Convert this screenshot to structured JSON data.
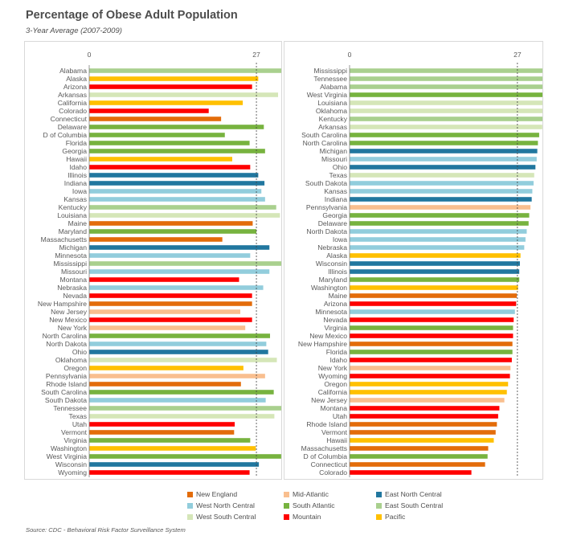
{
  "title": "Percentage of Obese Adult Population",
  "subtitle": "3-Year Average (2007-2009)",
  "source": "Source: CDC - Behavioral Risk Factor Surveillance System",
  "colors": {
    "New England": "#e36c0a",
    "Mid-Atlantic": "#f9bf8f",
    "East North Central": "#21779f",
    "West North Central": "#92cddc",
    "South Atlantic": "#77b33f",
    "East South Central": "#a9d08e",
    "West South Central": "#d5e6b8",
    "Mountain": "#ff0000",
    "Pacific": "#ffc000"
  },
  "legend": [
    {
      "label": "New England",
      "color": "#e36c0a"
    },
    {
      "label": "Mid-Atlantic",
      "color": "#f9bf8f"
    },
    {
      "label": "East North Central",
      "color": "#21779f"
    },
    {
      "label": "West North Central",
      "color": "#92cddc"
    },
    {
      "label": "South Atlantic",
      "color": "#77b33f"
    },
    {
      "label": "East South Central",
      "color": "#a9d08e"
    },
    {
      "label": "West South Central",
      "color": "#d5e6b8"
    },
    {
      "label": "Mountain",
      "color": "#ff0000"
    },
    {
      "label": "Pacific",
      "color": "#ffc000"
    }
  ],
  "chart_data": [
    {
      "type": "bar",
      "orientation": "horizontal",
      "sort": "alphabetical",
      "xlim": [
        0,
        34
      ],
      "xticks": [
        "0",
        "27"
      ],
      "reference_line": 27,
      "categories": [
        "Alabama",
        "Alaska",
        "Arizona",
        "Arkansas",
        "California",
        "Colorado",
        "Connecticut",
        "Delaware",
        "D of Columbia",
        "Florida",
        "Georgia",
        "Hawaii",
        "Idaho",
        "Illinois",
        "Indiana",
        "Iowa",
        "Kansas",
        "Kentucky",
        "Louisiana",
        "Maine",
        "Maryland",
        "Massachusetts",
        "Michigan",
        "Minnesota",
        "Mississippi",
        "Missouri",
        "Montana",
        "Nebraska",
        "Nevada",
        "New Hampshire",
        "New Jersey",
        "New Mexico",
        "New York",
        "North Carolina",
        "North Dakota",
        "Ohio",
        "Oklahoma",
        "Oregon",
        "Pennsylvania",
        "Rhode Island",
        "South Carolina",
        "South Dakota",
        "Tennessee",
        "Texas",
        "Utah",
        "Vermont",
        "Virginia",
        "Washington",
        "West Virginia",
        "Wisconsin",
        "Wyoming"
      ],
      "values": [
        31.6,
        27.3,
        26.3,
        30.5,
        24.8,
        19.3,
        21.3,
        28.2,
        21.9,
        25.9,
        28.4,
        23.1,
        26.0,
        27.3,
        28.3,
        27.8,
        28.4,
        30.2,
        30.8,
        26.4,
        27.0,
        21.5,
        29.1,
        26.0,
        33.8,
        29.1,
        24.2,
        28.1,
        26.3,
        26.3,
        24.4,
        26.3,
        25.2,
        29.2,
        28.6,
        28.9,
        30.3,
        24.9,
        28.4,
        24.5,
        29.8,
        28.5,
        31.4,
        29.9,
        23.5,
        23.4,
        26.0,
        26.9,
        31.0,
        27.4,
        25.9
      ],
      "regions": [
        "East South Central",
        "Pacific",
        "Mountain",
        "West South Central",
        "Pacific",
        "Mountain",
        "New England",
        "South Atlantic",
        "South Atlantic",
        "South Atlantic",
        "South Atlantic",
        "Pacific",
        "Mountain",
        "East North Central",
        "East North Central",
        "West North Central",
        "West North Central",
        "East South Central",
        "West South Central",
        "New England",
        "South Atlantic",
        "New England",
        "East North Central",
        "West North Central",
        "East South Central",
        "West North Central",
        "Mountain",
        "West North Central",
        "Mountain",
        "New England",
        "Mid-Atlantic",
        "Mountain",
        "Mid-Atlantic",
        "South Atlantic",
        "West North Central",
        "East North Central",
        "West South Central",
        "Pacific",
        "Mid-Atlantic",
        "New England",
        "South Atlantic",
        "West North Central",
        "East South Central",
        "West South Central",
        "Mountain",
        "New England",
        "South Atlantic",
        "Pacific",
        "South Atlantic",
        "East North Central",
        "Mountain"
      ]
    },
    {
      "type": "bar",
      "orientation": "horizontal",
      "sort": "descending",
      "xlim": [
        0,
        34
      ],
      "xticks": [
        "0",
        "27"
      ],
      "reference_line": 27,
      "categories": [
        "Mississippi",
        "Tennessee",
        "Alabama",
        "West Virginia",
        "Louisiana",
        "Oklahoma",
        "Kentucky",
        "Arkansas",
        "South Carolina",
        "North Carolina",
        "Michigan",
        "Missouri",
        "Ohio",
        "Texas",
        "South Dakota",
        "Kansas",
        "Indiana",
        "Pennsylvania",
        "Georgia",
        "Delaware",
        "North Dakota",
        "Iowa",
        "Nebraska",
        "Alaska",
        "Wisconsin",
        "Illinois",
        "Maryland",
        "Washington",
        "Maine",
        "Arizona",
        "Minnesota",
        "Nevada",
        "Virginia",
        "New Mexico",
        "New Hampshire",
        "Florida",
        "Idaho",
        "New York",
        "Wyoming",
        "Oregon",
        "California",
        "New Jersey",
        "Montana",
        "Utah",
        "Rhode Island",
        "Vermont",
        "Hawaii",
        "Massachusetts",
        "D of Columbia",
        "Connecticut",
        "Colorado"
      ],
      "values": [
        33.8,
        32.3,
        32.2,
        32.0,
        31.6,
        31.4,
        31.2,
        31.0,
        30.5,
        30.3,
        30.2,
        30.1,
        29.9,
        29.7,
        29.6,
        29.4,
        29.3,
        29.1,
        28.9,
        28.8,
        28.5,
        28.3,
        28.1,
        27.5,
        27.4,
        27.3,
        27.3,
        27.1,
        26.9,
        26.8,
        26.6,
        26.4,
        26.3,
        26.3,
        26.2,
        26.2,
        26.1,
        25.9,
        25.8,
        25.5,
        25.3,
        24.9,
        24.1,
        23.9,
        23.7,
        23.5,
        23.2,
        22.3,
        22.2,
        21.8,
        19.6
      ],
      "regions": [
        "East South Central",
        "East South Central",
        "East South Central",
        "South Atlantic",
        "West South Central",
        "West South Central",
        "East South Central",
        "West South Central",
        "South Atlantic",
        "South Atlantic",
        "East North Central",
        "West North Central",
        "East North Central",
        "West South Central",
        "West North Central",
        "West North Central",
        "East North Central",
        "Mid-Atlantic",
        "South Atlantic",
        "South Atlantic",
        "West North Central",
        "West North Central",
        "West North Central",
        "Pacific",
        "East North Central",
        "East North Central",
        "South Atlantic",
        "Pacific",
        "New England",
        "Mountain",
        "West North Central",
        "Mountain",
        "South Atlantic",
        "Mountain",
        "New England",
        "South Atlantic",
        "Mountain",
        "Mid-Atlantic",
        "Mountain",
        "Pacific",
        "Pacific",
        "Mid-Atlantic",
        "Mountain",
        "Mountain",
        "New England",
        "New England",
        "Pacific",
        "New England",
        "South Atlantic",
        "New England",
        "Mountain"
      ]
    }
  ]
}
